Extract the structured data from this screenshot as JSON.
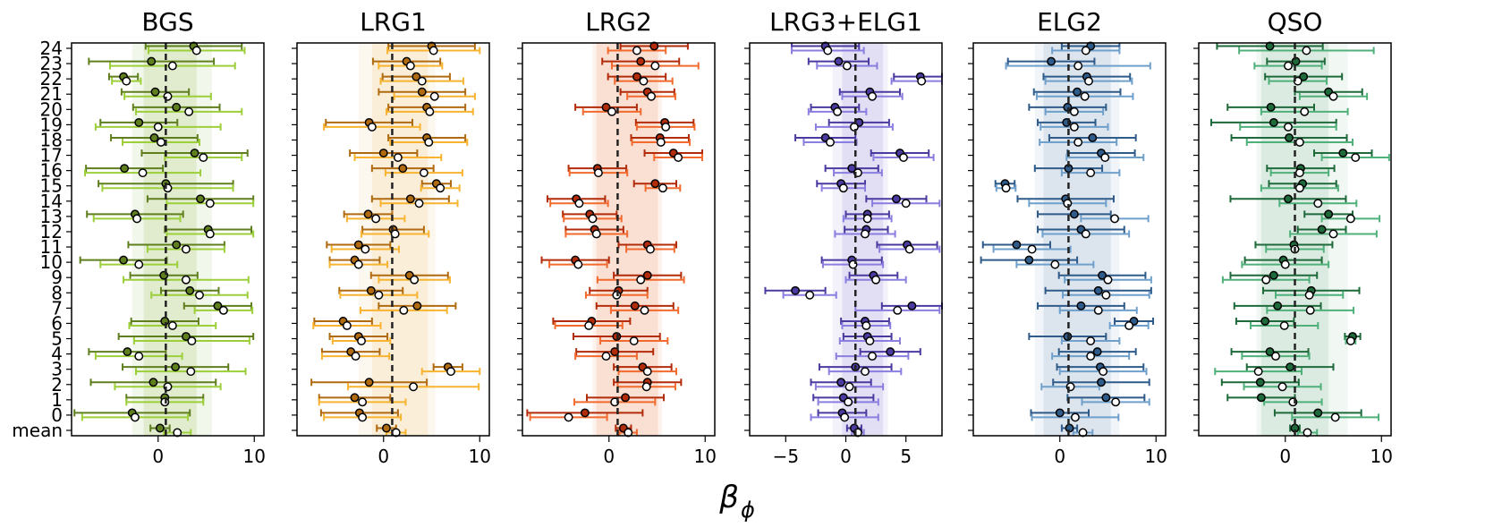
{
  "chart_data": {
    "type": "scatter",
    "xlabel": "β",
    "xlabel_sub": "ϕ",
    "rows": [
      "mean",
      "0",
      "1",
      "2",
      "3",
      "4",
      "5",
      "6",
      "7",
      "8",
      "9",
      "10",
      "11",
      "12",
      "13",
      "14",
      "15",
      "16",
      "17",
      "18",
      "19",
      "20",
      "21",
      "22",
      "23",
      "24"
    ],
    "xticks": [
      0,
      10
    ],
    "panels": [
      {
        "title": "BGS",
        "xlim": [
          -9,
          11
        ],
        "xticks": [
          0,
          10
        ],
        "ref_line": 0.8,
        "bands": [
          {
            "lo": -1.5,
            "hi": 4.0,
            "color": "#a8c96b",
            "alpha": 0.25
          },
          {
            "lo": -2.7,
            "hi": 5.6,
            "color": "#c6dca8",
            "alpha": 0.22
          }
        ],
        "colors": {
          "dark": "#5f7f1f",
          "light": "#9ccf3a"
        },
        "series": [
          {
            "name": "A",
            "values": [
              0.2,
              -2.7,
              0.7,
              -0.5,
              1.8,
              -3.2,
              2.9,
              0.7,
              6.2,
              3.3,
              0.6,
              -3.6,
              1.9,
              5.2,
              -2.4,
              4.4,
              0.8,
              -3.5,
              3.8,
              -0.4,
              -2.0,
              1.9,
              -0.3,
              -3.6,
              -0.7,
              3.7
            ],
            "errors": [
              1.0,
              6.0,
              4.0,
              6.5,
              5.5,
              4.0,
              7.0,
              3.5,
              3.5,
              3.0,
              3.5,
              4.5,
              5.0,
              4.5,
              5.0,
              5.5,
              7.0,
              4.0,
              5.5,
              4.5,
              4.0,
              4.5,
              3.5,
              1.5,
              6.5,
              5.0
            ]
          },
          {
            "name": "B",
            "values": [
              2.0,
              -2.4,
              0.7,
              1.0,
              3.4,
              -2.0,
              3.5,
              1.5,
              6.8,
              4.3,
              2.9,
              -2.0,
              2.9,
              5.4,
              -2.2,
              5.4,
              1.0,
              -1.6,
              4.7,
              0.3,
              0.0,
              3.2,
              1.0,
              -3.3,
              1.5,
              4.0
            ],
            "errors": [
              1.4,
              5.5,
              4.0,
              5.5,
              5.7,
              4.5,
              6.0,
              4.5,
              3.0,
              5.0,
              6.5,
              4.0,
              4.0,
              4.5,
              4.5,
              4.5,
              6.8,
              6.0,
              4.0,
              4.0,
              6.5,
              5.5,
              4.5,
              1.5,
              6.5,
              5.0
            ]
          }
        ]
      },
      {
        "title": "LRG1",
        "xlim": [
          -9,
          11
        ],
        "xticks": [
          0,
          10
        ],
        "ref_line": 0.9,
        "bands": [
          {
            "lo": -1.2,
            "hi": 4.6,
            "color": "#f2cf8f",
            "alpha": 0.25
          },
          {
            "lo": -2.6,
            "hi": 5.4,
            "color": "#f6dfb8",
            "alpha": 0.22
          }
        ],
        "colors": {
          "dark": "#b06a10",
          "light": "#f8b431"
        },
        "series": [
          {
            "name": "A",
            "values": [
              0.3,
              -2.5,
              -3.0,
              -1.5,
              6.7,
              -3.4,
              -2.6,
              -4.2,
              3.5,
              -1.3,
              2.7,
              -3.0,
              -2.6,
              1.0,
              -1.6,
              2.8,
              5.5,
              2.0,
              0.0,
              4.5,
              -1.5,
              4.5,
              4.0,
              3.4,
              2.4,
              5.0
            ],
            "errors": [
              1.0,
              4.0,
              3.7,
              6.0,
              1.5,
              3.0,
              3.0,
              3.0,
              4.0,
              3.3,
              4.0,
              2.6,
              3.3,
              3.2,
              2.5,
              4.0,
              1.5,
              3.2,
              3.5,
              4.0,
              4.5,
              4.0,
              4.5,
              3.5,
              3.5,
              4.5
            ]
          },
          {
            "name": "B",
            "values": [
              1.3,
              -2.2,
              -2.2,
              3.1,
              7.0,
              -2.9,
              -2.3,
              -3.8,
              2.1,
              -0.5,
              3.2,
              -2.6,
              -1.9,
              1.2,
              -0.8,
              3.7,
              5.9,
              4.2,
              1.5,
              4.7,
              -1.2,
              4.8,
              5.3,
              4.0,
              2.8,
              5.2
            ],
            "errors": [
              1.0,
              4.0,
              4.5,
              6.8,
              3.0,
              3.5,
              3.0,
              3.5,
              4.5,
              4.0,
              3.7,
              3.0,
              3.5,
              3.5,
              3.0,
              4.0,
              2.0,
              4.0,
              4.5,
              4.0,
              5.0,
              4.5,
              4.2,
              4.3,
              3.3,
              4.8
            ]
          }
        ]
      },
      {
        "title": "LRG2",
        "xlim": [
          -9,
          11
        ],
        "xticks": [
          0,
          10
        ],
        "ref_line": 0.9,
        "bands": [
          {
            "lo": -1.3,
            "hi": 5.1,
            "color": "#f0a07a",
            "alpha": 0.25
          },
          {
            "lo": -1.7,
            "hi": 5.5,
            "color": "#f5c3ae",
            "alpha": 0.22
          }
        ],
        "colors": {
          "dark": "#b32c0a",
          "light": "#f26a2e"
        },
        "series": [
          {
            "name": "A",
            "values": [
              1.5,
              -2.5,
              1.7,
              4.0,
              3.5,
              0.6,
              0.8,
              -1.8,
              2.7,
              1.0,
              4.0,
              -3.5,
              4.0,
              -1.5,
              -2.0,
              -3.4,
              4.8,
              -1.2,
              6.7,
              5.3,
              5.8,
              -0.3,
              4.0,
              2.9,
              3.3,
              4.7
            ],
            "errors": [
              0.8,
              6.0,
              4.0,
              3.5,
              3.0,
              4.0,
              4.5,
              4.0,
              4.0,
              3.0,
              3.5,
              3.5,
              3.0,
              3.0,
              2.8,
              3.0,
              2.2,
              3.0,
              3.0,
              3.0,
              3.0,
              3.2,
              2.8,
              3.0,
              4.0,
              3.5
            ]
          },
          {
            "name": "B",
            "values": [
              2.0,
              -4.2,
              0.6,
              3.9,
              4.0,
              -0.3,
              2.6,
              -2.1,
              3.7,
              0.8,
              3.3,
              -3.2,
              4.3,
              -1.3,
              -1.7,
              -3.1,
              5.6,
              -1.1,
              7.2,
              5.4,
              5.9,
              0.3,
              4.4,
              3.6,
              4.8,
              2.9
            ],
            "errors": [
              0.9,
              4.0,
              4.2,
              3.0,
              3.0,
              3.2,
              3.5,
              3.5,
              3.5,
              3.2,
              4.5,
              3.0,
              2.5,
              3.2,
              3.0,
              3.0,
              1.8,
              3.0,
              2.5,
              3.0,
              3.0,
              3.0,
              2.5,
              3.0,
              4.5,
              3.0
            ]
          }
        ]
      },
      {
        "title": "LRG3+ELG1",
        "xlim": [
          -8,
          8
        ],
        "xticks": [
          -5,
          0,
          5
        ],
        "ref_line": 0.8,
        "bands": [
          {
            "lo": -0.3,
            "hi": 3.1,
            "color": "#a89ee0",
            "alpha": 0.25
          },
          {
            "lo": -1.1,
            "hi": 3.5,
            "color": "#c9c3ec",
            "alpha": 0.22
          }
        ],
        "colors": {
          "dark": "#4b3aa0",
          "light": "#8a7ee0"
        },
        "series": [
          {
            "name": "A",
            "values": [
              0.7,
              -0.3,
              -0.2,
              -0.4,
              0.8,
              3.7,
              1.8,
              1.6,
              5.5,
              -4.2,
              2.3,
              0.5,
              5.1,
              1.7,
              1.8,
              4.2,
              -0.4,
              0.5,
              4.5,
              -1.7,
              1.1,
              -0.9,
              2.0,
              6.2,
              -0.6,
              -1.7
            ],
            "errors": [
              0.6,
              2.0,
              2.5,
              2.5,
              3.0,
              2.5,
              2.0,
              2.0,
              2.5,
              2.5,
              2.0,
              2.5,
              2.5,
              1.8,
              1.8,
              2.5,
              2.0,
              2.2,
              2.4,
              2.5,
              2.5,
              2.0,
              2.5,
              2.2,
              2.5,
              2.8
            ]
          },
          {
            "name": "B",
            "values": [
              1.0,
              -0.1,
              0.2,
              0.3,
              1.6,
              2.2,
              2.0,
              1.7,
              4.3,
              -3.0,
              2.5,
              0.6,
              5.3,
              1.6,
              1.8,
              5.0,
              -0.2,
              1.0,
              4.8,
              -1.3,
              0.7,
              -0.7,
              2.2,
              6.3,
              0.1,
              -1.5
            ],
            "errors": [
              0.5,
              2.8,
              2.5,
              2.8,
              3.0,
              3.0,
              2.5,
              2.0,
              3.5,
              2.2,
              2.5,
              2.5,
              2.5,
              2.5,
              2.0,
              2.8,
              1.8,
              2.0,
              2.5,
              2.2,
              3.2,
              2.4,
              2.5,
              2.5,
              2.5,
              3.0
            ]
          }
        ]
      },
      {
        "title": "ELG2",
        "xlim": [
          -9,
          11
        ],
        "xticks": [
          0,
          10
        ],
        "ref_line": 0.9,
        "bands": [
          {
            "lo": -1.7,
            "hi": 5.3,
            "color": "#98aec8",
            "alpha": 0.25
          },
          {
            "lo": -2.6,
            "hi": 6.2,
            "color": "#c1cfdf",
            "alpha": 0.22
          }
        ],
        "colors": {
          "dark": "#2f5b8a",
          "light": "#6fa0cc"
        },
        "series": [
          {
            "name": "A",
            "values": [
              1.0,
              0.0,
              4.8,
              4.3,
              4.2,
              3.9,
              0.8,
              7.7,
              2.2,
              4.0,
              4.4,
              -3.2,
              -4.5,
              2.2,
              1.5,
              0.6,
              -5.7,
              0.9,
              4.3,
              3.4,
              0.7,
              0.8,
              1.8,
              2.8,
              -0.9,
              3.2
            ],
            "errors": [
              0.8,
              3.0,
              4.0,
              5.0,
              4.5,
              4.0,
              4.0,
              2.0,
              4.5,
              5.5,
              4.5,
              5.0,
              3.5,
              4.5,
              3.8,
              5.0,
              1.0,
              3.5,
              3.5,
              4.5,
              3.0,
              4.0,
              4.5,
              4.5,
              4.5,
              3.0
            ]
          },
          {
            "name": "B",
            "values": [
              2.4,
              1.6,
              5.8,
              1.1,
              4.5,
              3.2,
              3.2,
              7.2,
              4.0,
              4.8,
              5.0,
              -0.5,
              -2.9,
              2.7,
              5.7,
              0.8,
              -5.6,
              3.2,
              4.7,
              1.9,
              1.5,
              1.5,
              2.6,
              3.0,
              1.9,
              2.7
            ],
            "errors": [
              1.0,
              4.5,
              3.5,
              3.0,
              4.5,
              4.0,
              3.0,
              2.0,
              4.0,
              4.5,
              4.5,
              4.0,
              4.0,
              4.5,
              3.5,
              4.0,
              1.0,
              3.0,
              4.0,
              4.0,
              3.5,
              3.0,
              5.0,
              4.5,
              7.5,
              3.5
            ]
          }
        ]
      },
      {
        "title": "QSO",
        "xlim": [
          -9,
          11
        ],
        "xticks": [
          0,
          10
        ],
        "ref_line": 1.0,
        "bands": [
          {
            "lo": -2.5,
            "hi": 4.5,
            "color": "#93c3a7",
            "alpha": 0.25
          },
          {
            "lo": -3.0,
            "hi": 6.5,
            "color": "#bfdcc9",
            "alpha": 0.22
          }
        ],
        "colors": {
          "dark": "#1e6a3a",
          "light": "#4fb07a"
        },
        "series": [
          {
            "name": "A",
            "values": [
              1.0,
              3.4,
              -2.5,
              -2.6,
              0.5,
              -1.6,
              7.0,
              -2.1,
              -0.8,
              2.7,
              -1.2,
              -0.2,
              0.9,
              3.8,
              4.5,
              0.3,
              1.8,
              1.6,
              6.0,
              0.4,
              -1.2,
              -1.5,
              4.5,
              1.9,
              1.1,
              -1.6
            ],
            "errors": [
              0.5,
              4.5,
              3.5,
              4.0,
              4.5,
              4.0,
              0.8,
              3.0,
              4.5,
              5.0,
              4.5,
              4.0,
              4.0,
              2.5,
              2.5,
              6.0,
              3.5,
              3.5,
              3.0,
              6.0,
              6.5,
              4.5,
              3.5,
              4.0,
              3.0,
              5.5
            ]
          },
          {
            "name": "B",
            "values": [
              2.3,
              5.2,
              0.8,
              -0.3,
              -2.8,
              -1.0,
              6.8,
              -0.1,
              2.6,
              2.5,
              -2.0,
              0.0,
              1.0,
              5.0,
              6.8,
              3.4,
              1.5,
              1.5,
              7.3,
              1.5,
              0.3,
              2.0,
              5.0,
              1.3,
              0.3,
              2.2
            ],
            "errors": [
              1.0,
              4.5,
              3.0,
              4.0,
              4.5,
              3.5,
              0.5,
              3.5,
              4.5,
              3.5,
              4.5,
              4.5,
              3.0,
              4.5,
              3.0,
              4.0,
              4.0,
              3.0,
              3.5,
              5.5,
              5.0,
              4.5,
              3.5,
              3.0,
              3.5,
              7.0
            ]
          }
        ]
      }
    ]
  }
}
